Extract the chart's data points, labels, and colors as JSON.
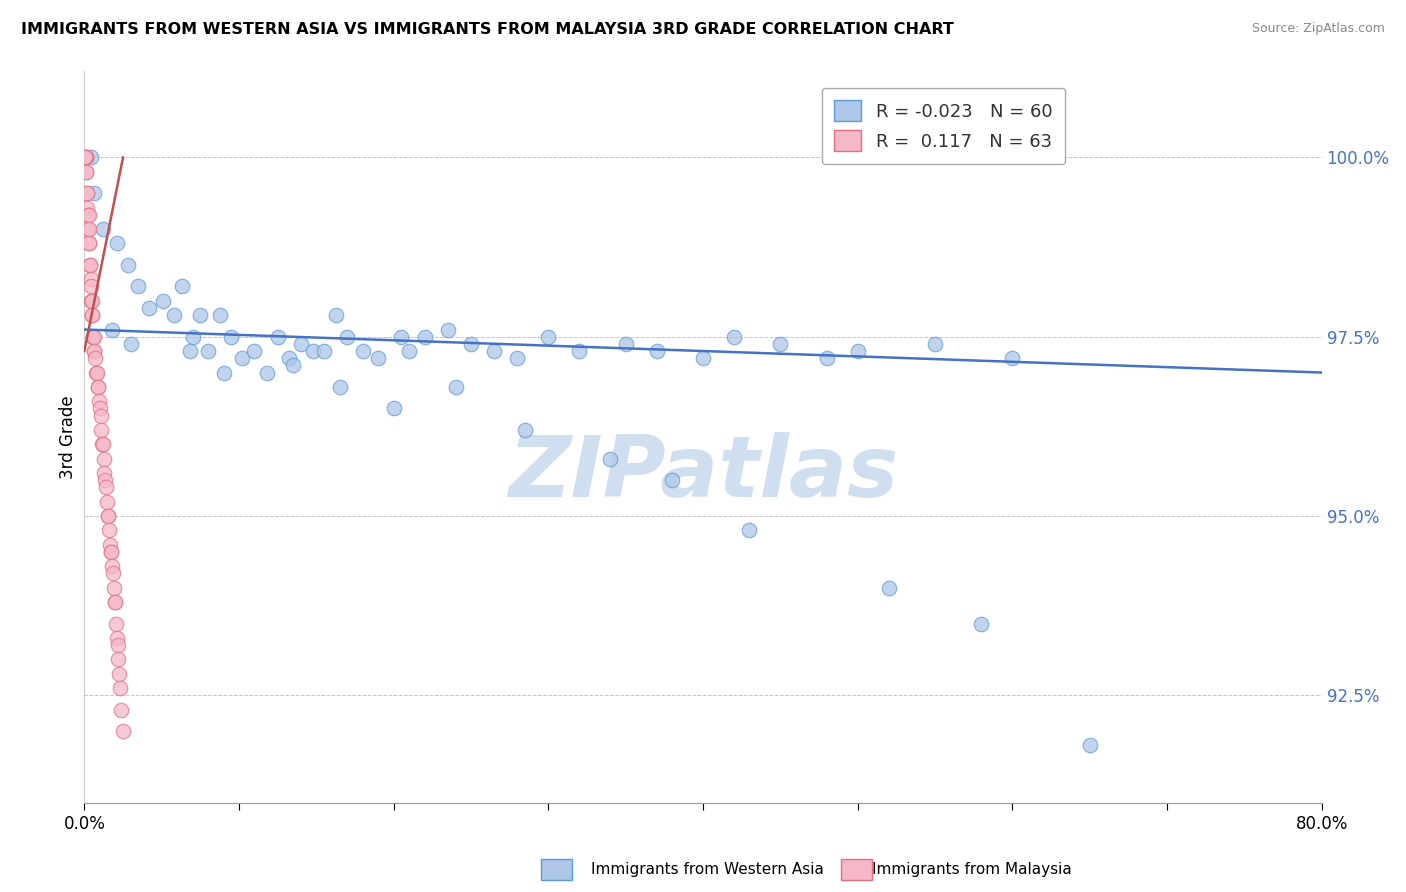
{
  "title": "IMMIGRANTS FROM WESTERN ASIA VS IMMIGRANTS FROM MALAYSIA 3RD GRADE CORRELATION CHART",
  "source": "Source: ZipAtlas.com",
  "ylabel_left": "3rd Grade",
  "right_yticks": [
    100.0,
    97.5,
    95.0,
    92.5
  ],
  "right_yticklabels": [
    "100.0%",
    "97.5%",
    "95.0%",
    "92.5%"
  ],
  "legend1_label": "Immigrants from Western Asia",
  "legend2_label": "Immigrants from Malaysia",
  "r1": -0.023,
  "n1": 60,
  "r2": 0.117,
  "n2": 63,
  "blue_color": "#aec6e8",
  "pink_color": "#f4b8c8",
  "blue_edge_color": "#5b9bd5",
  "pink_edge_color": "#e07080",
  "blue_line_color": "#4472c4",
  "pink_line_color": "#c0504d",
  "right_axis_color": "#4472c4",
  "watermark_color": "#d0dff0",
  "watermark_text": "ZIPatlas",
  "xlim": [
    0.0,
    80.0
  ],
  "ylim": [
    91.0,
    101.2
  ],
  "xticks": [
    0.0,
    10.0,
    20.0,
    30.0,
    40.0,
    50.0,
    60.0,
    70.0,
    80.0
  ],
  "blue_scatter_x": [
    0.4,
    0.6,
    1.2,
    2.1,
    2.8,
    3.5,
    4.2,
    5.1,
    5.8,
    6.3,
    7.0,
    7.5,
    8.0,
    8.8,
    9.5,
    10.2,
    11.0,
    11.8,
    12.5,
    13.2,
    14.0,
    14.8,
    15.5,
    16.3,
    17.0,
    18.0,
    19.0,
    20.5,
    21.0,
    22.0,
    23.5,
    25.0,
    26.5,
    28.0,
    30.0,
    32.0,
    35.0,
    37.0,
    40.0,
    42.0,
    45.0,
    48.0,
    50.0,
    55.0,
    60.0,
    1.8,
    3.0,
    6.8,
    9.0,
    13.5,
    16.5,
    20.0,
    24.0,
    28.5,
    34.0,
    38.0,
    43.0,
    52.0,
    58.0,
    65.0
  ],
  "blue_scatter_y": [
    100.0,
    99.5,
    99.0,
    98.8,
    98.5,
    98.2,
    97.9,
    98.0,
    97.8,
    98.2,
    97.5,
    97.8,
    97.3,
    97.8,
    97.5,
    97.2,
    97.3,
    97.0,
    97.5,
    97.2,
    97.4,
    97.3,
    97.3,
    97.8,
    97.5,
    97.3,
    97.2,
    97.5,
    97.3,
    97.5,
    97.6,
    97.4,
    97.3,
    97.2,
    97.5,
    97.3,
    97.4,
    97.3,
    97.2,
    97.5,
    97.4,
    97.2,
    97.3,
    97.4,
    97.2,
    97.6,
    97.4,
    97.3,
    97.0,
    97.1,
    96.8,
    96.5,
    96.8,
    96.2,
    95.8,
    95.5,
    94.8,
    94.0,
    93.5,
    91.8
  ],
  "pink_scatter_x": [
    0.05,
    0.08,
    0.1,
    0.12,
    0.15,
    0.18,
    0.2,
    0.22,
    0.25,
    0.28,
    0.3,
    0.32,
    0.35,
    0.38,
    0.4,
    0.42,
    0.45,
    0.48,
    0.5,
    0.52,
    0.55,
    0.58,
    0.6,
    0.62,
    0.65,
    0.7,
    0.75,
    0.8,
    0.85,
    0.9,
    0.95,
    1.0,
    1.05,
    1.1,
    1.15,
    1.2,
    1.25,
    1.3,
    1.35,
    1.4,
    1.45,
    1.5,
    1.55,
    1.6,
    1.65,
    1.7,
    1.75,
    1.8,
    1.85,
    1.9,
    1.95,
    2.0,
    2.05,
    2.1,
    2.15,
    2.2,
    2.25,
    2.3,
    2.4,
    2.5,
    0.07,
    0.13,
    0.33
  ],
  "pink_scatter_y": [
    100.0,
    100.0,
    100.0,
    99.8,
    99.5,
    99.5,
    99.3,
    99.2,
    99.0,
    99.2,
    98.8,
    99.0,
    98.5,
    98.5,
    98.3,
    98.2,
    98.0,
    98.0,
    97.8,
    97.8,
    97.5,
    97.5,
    97.3,
    97.5,
    97.3,
    97.2,
    97.0,
    97.0,
    96.8,
    96.8,
    96.6,
    96.5,
    96.4,
    96.2,
    96.0,
    96.0,
    95.8,
    95.6,
    95.5,
    95.4,
    95.2,
    95.0,
    95.0,
    94.8,
    94.6,
    94.5,
    94.5,
    94.3,
    94.2,
    94.0,
    93.8,
    93.8,
    93.5,
    93.3,
    93.2,
    93.0,
    92.8,
    92.6,
    92.3,
    92.0,
    100.0,
    99.8,
    98.8
  ],
  "blue_trend_x": [
    0.0,
    80.0
  ],
  "blue_trend_y": [
    97.6,
    97.0
  ],
  "pink_trend_x": [
    0.0,
    2.5
  ],
  "pink_trend_y": [
    97.3,
    100.0
  ]
}
